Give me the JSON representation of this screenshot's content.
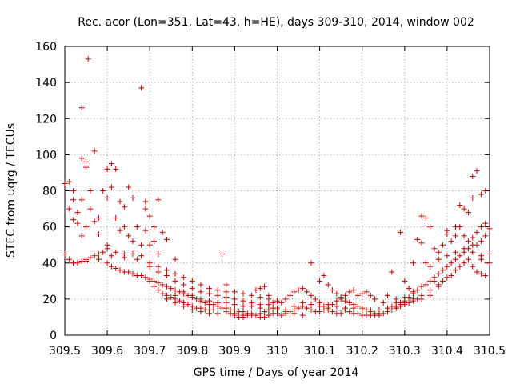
{
  "chart_data": {
    "type": "scatter",
    "title": "Rec. acor (Lon=351, Lat=43, h=HE), days 309-310, 2014, window 002",
    "xlabel": "GPS time / Days of year 2014",
    "ylabel": "STEC from uqrg / TECUs",
    "xlim": [
      309.5,
      310.5
    ],
    "ylim": [
      0,
      160
    ],
    "xticks": [
      309.5,
      309.6,
      309.7,
      309.8,
      309.9,
      310,
      310.1,
      310.2,
      310.3,
      310.4,
      310.5
    ],
    "xtick_labels": [
      "309.5",
      "309.6",
      "309.7",
      "309.8",
      "309.9",
      "310",
      "310.1",
      "310.2",
      "310.3",
      "310.4",
      "310.5"
    ],
    "yticks": [
      0,
      20,
      40,
      60,
      80,
      100,
      120,
      140,
      160
    ],
    "ytick_labels": [
      "0",
      "20",
      "40",
      "60",
      "80",
      "100",
      "120",
      "140",
      "160"
    ],
    "grid": true,
    "marker": "+",
    "color": "#cc0000",
    "points": [
      [
        309.5,
        84
      ],
      [
        309.51,
        85
      ],
      [
        309.52,
        80
      ],
      [
        309.52,
        75
      ],
      [
        309.51,
        70
      ],
      [
        309.53,
        68
      ],
      [
        309.52,
        64
      ],
      [
        309.53,
        62
      ],
      [
        309.54,
        98
      ],
      [
        309.55,
        93
      ],
      [
        309.55,
        96
      ],
      [
        309.54,
        75
      ],
      [
        309.56,
        80
      ],
      [
        309.55,
        60
      ],
      [
        309.54,
        55
      ],
      [
        309.57,
        63
      ],
      [
        309.54,
        126
      ],
      [
        309.555,
        153
      ],
      [
        309.57,
        102
      ],
      [
        309.59,
        80
      ],
      [
        309.58,
        65
      ],
      [
        309.56,
        70
      ],
      [
        309.58,
        56
      ],
      [
        309.6,
        92
      ],
      [
        309.61,
        95
      ],
      [
        309.62,
        92
      ],
      [
        309.6,
        76
      ],
      [
        309.61,
        82
      ],
      [
        309.63,
        74
      ],
      [
        309.64,
        71
      ],
      [
        309.62,
        65
      ],
      [
        309.65,
        82
      ],
      [
        309.66,
        76
      ],
      [
        309.64,
        60
      ],
      [
        309.65,
        55
      ],
      [
        309.66,
        52
      ],
      [
        309.63,
        58
      ],
      [
        309.6,
        50
      ],
      [
        309.68,
        137
      ],
      [
        309.69,
        74
      ],
      [
        309.7,
        66
      ],
      [
        309.69,
        70
      ],
      [
        309.71,
        60
      ],
      [
        309.72,
        75
      ],
      [
        309.67,
        60
      ],
      [
        309.68,
        50
      ],
      [
        309.7,
        50
      ],
      [
        309.72,
        45
      ],
      [
        309.73,
        57
      ],
      [
        309.74,
        53
      ],
      [
        309.71,
        52
      ],
      [
        309.69,
        58
      ],
      [
        309.76,
        42
      ],
      [
        309.5,
        45
      ],
      [
        309.51,
        42
      ],
      [
        309.52,
        40
      ],
      [
        309.53,
        40
      ],
      [
        309.54,
        41
      ],
      [
        309.55,
        42
      ],
      [
        309.56,
        43
      ],
      [
        309.57,
        44
      ],
      [
        309.58,
        45
      ],
      [
        309.59,
        46
      ],
      [
        309.6,
        40
      ],
      [
        309.61,
        38
      ],
      [
        309.62,
        37
      ],
      [
        309.63,
        36
      ],
      [
        309.64,
        35
      ],
      [
        309.65,
        35
      ],
      [
        309.66,
        34
      ],
      [
        309.67,
        33
      ],
      [
        309.68,
        33
      ],
      [
        309.69,
        32
      ],
      [
        309.7,
        31
      ],
      [
        309.71,
        30
      ],
      [
        309.72,
        29
      ],
      [
        309.73,
        28
      ],
      [
        309.74,
        27
      ],
      [
        309.75,
        26
      ],
      [
        309.76,
        25
      ],
      [
        309.77,
        24
      ],
      [
        309.78,
        23
      ],
      [
        309.79,
        22
      ],
      [
        309.8,
        21
      ],
      [
        309.81,
        20
      ],
      [
        309.82,
        19
      ],
      [
        309.83,
        18
      ],
      [
        309.84,
        17
      ],
      [
        309.85,
        17
      ],
      [
        309.86,
        16
      ],
      [
        309.87,
        15
      ],
      [
        309.88,
        15
      ],
      [
        309.89,
        14
      ],
      [
        309.9,
        14
      ],
      [
        309.91,
        13
      ],
      [
        309.92,
        13
      ],
      [
        309.93,
        12
      ],
      [
        309.94,
        12
      ],
      [
        309.95,
        11
      ],
      [
        309.96,
        12
      ],
      [
        309.97,
        13
      ],
      [
        309.98,
        14
      ],
      [
        309.99,
        15
      ],
      [
        309.52,
        40
      ],
      [
        309.55,
        41
      ],
      [
        309.58,
        42
      ],
      [
        309.61,
        44
      ],
      [
        309.64,
        43
      ],
      [
        309.67,
        42
      ],
      [
        309.7,
        40
      ],
      [
        309.72,
        38
      ],
      [
        309.74,
        36
      ],
      [
        309.76,
        34
      ],
      [
        309.78,
        32
      ],
      [
        309.8,
        30
      ],
      [
        309.82,
        28
      ],
      [
        309.84,
        26
      ],
      [
        309.86,
        25
      ],
      [
        309.88,
        24
      ],
      [
        309.9,
        24
      ],
      [
        309.92,
        23
      ],
      [
        309.94,
        22
      ],
      [
        309.96,
        21
      ],
      [
        309.98,
        20
      ],
      [
        310.0,
        19
      ],
      [
        309.6,
        48
      ],
      [
        309.62,
        46
      ],
      [
        309.64,
        45
      ],
      [
        309.66,
        45
      ],
      [
        309.68,
        44
      ],
      [
        309.7,
        38
      ],
      [
        309.72,
        35
      ],
      [
        309.74,
        33
      ],
      [
        309.76,
        30
      ],
      [
        309.78,
        28
      ],
      [
        309.8,
        26
      ],
      [
        309.82,
        24
      ],
      [
        309.84,
        23
      ],
      [
        309.86,
        22
      ],
      [
        309.88,
        21
      ],
      [
        309.9,
        20
      ],
      [
        309.92,
        19
      ],
      [
        309.94,
        18
      ],
      [
        309.96,
        17
      ],
      [
        309.98,
        17
      ],
      [
        309.7,
        30
      ],
      [
        309.71,
        27
      ],
      [
        309.72,
        25
      ],
      [
        309.73,
        23
      ],
      [
        309.74,
        22
      ],
      [
        309.75,
        21
      ],
      [
        309.76,
        20
      ],
      [
        309.77,
        19
      ],
      [
        309.78,
        18
      ],
      [
        309.79,
        17
      ],
      [
        309.8,
        16
      ],
      [
        309.81,
        15
      ],
      [
        309.82,
        15
      ],
      [
        309.83,
        14
      ],
      [
        309.84,
        14
      ],
      [
        309.85,
        14
      ],
      [
        309.87,
        45
      ],
      [
        309.88,
        28
      ],
      [
        309.89,
        12
      ],
      [
        309.9,
        11
      ],
      [
        309.91,
        10
      ],
      [
        309.92,
        10
      ],
      [
        309.93,
        11
      ],
      [
        309.95,
        25
      ],
      [
        309.96,
        26
      ],
      [
        309.97,
        27
      ],
      [
        309.98,
        22
      ],
      [
        309.99,
        18
      ],
      [
        309.97,
        10
      ],
      [
        309.99,
        12
      ],
      [
        310.0,
        15
      ],
      [
        310.01,
        18
      ],
      [
        310.02,
        20
      ],
      [
        310.03,
        22
      ],
      [
        310.04,
        24
      ],
      [
        310.05,
        25
      ],
      [
        310.06,
        26
      ],
      [
        310.07,
        24
      ],
      [
        310.08,
        22
      ],
      [
        310.09,
        20
      ],
      [
        310.1,
        18
      ],
      [
        310.11,
        16
      ],
      [
        310.12,
        14
      ],
      [
        310.13,
        13
      ],
      [
        310.14,
        12
      ],
      [
        310.15,
        12
      ],
      [
        310.01,
        11
      ],
      [
        310.02,
        12
      ],
      [
        310.03,
        13
      ],
      [
        310.04,
        14
      ],
      [
        310.05,
        15
      ],
      [
        310.06,
        16
      ],
      [
        310.07,
        15
      ],
      [
        310.08,
        14
      ],
      [
        310.09,
        13
      ],
      [
        310.1,
        13
      ],
      [
        310.11,
        14
      ],
      [
        310.12,
        15
      ],
      [
        310.13,
        17
      ],
      [
        310.14,
        19
      ],
      [
        310.15,
        20
      ],
      [
        310.16,
        22
      ],
      [
        310.08,
        40
      ],
      [
        310.1,
        30
      ],
      [
        310.11,
        33
      ],
      [
        310.12,
        28
      ],
      [
        310.13,
        25
      ],
      [
        310.14,
        23
      ],
      [
        310.15,
        21
      ],
      [
        310.16,
        19
      ],
      [
        310.17,
        18
      ],
      [
        310.18,
        17
      ],
      [
        310.19,
        16
      ],
      [
        310.2,
        15
      ],
      [
        310.21,
        14
      ],
      [
        310.22,
        13
      ],
      [
        310.23,
        12
      ],
      [
        310.24,
        12
      ],
      [
        310.16,
        14
      ],
      [
        310.17,
        13
      ],
      [
        310.18,
        12
      ],
      [
        310.19,
        12
      ],
      [
        310.2,
        11
      ],
      [
        310.21,
        11
      ],
      [
        310.22,
        11
      ],
      [
        310.23,
        11
      ],
      [
        310.24,
        11
      ],
      [
        310.25,
        12
      ],
      [
        310.26,
        13
      ],
      [
        310.27,
        14
      ],
      [
        310.28,
        15
      ],
      [
        310.29,
        16
      ],
      [
        310.17,
        24
      ],
      [
        310.18,
        25
      ],
      [
        310.19,
        22
      ],
      [
        310.2,
        23
      ],
      [
        310.21,
        24
      ],
      [
        310.22,
        22
      ],
      [
        310.23,
        20
      ],
      [
        310.25,
        18
      ],
      [
        310.26,
        22
      ],
      [
        310.27,
        35
      ],
      [
        310.28,
        20
      ],
      [
        310.29,
        18
      ],
      [
        310.3,
        17
      ],
      [
        310.31,
        18
      ],
      [
        310.32,
        19
      ],
      [
        310.33,
        20
      ],
      [
        310.28,
        15
      ],
      [
        310.29,
        17
      ],
      [
        310.3,
        19
      ],
      [
        310.31,
        21
      ],
      [
        310.32,
        23
      ],
      [
        310.33,
        25
      ],
      [
        310.34,
        27
      ],
      [
        310.35,
        28
      ],
      [
        310.36,
        30
      ],
      [
        310.37,
        32
      ],
      [
        310.38,
        34
      ],
      [
        310.39,
        36
      ],
      [
        310.4,
        38
      ],
      [
        310.41,
        40
      ],
      [
        310.42,
        42
      ],
      [
        310.43,
        44
      ],
      [
        310.44,
        46
      ],
      [
        310.45,
        48
      ],
      [
        310.46,
        50
      ],
      [
        310.47,
        50
      ],
      [
        310.48,
        52
      ],
      [
        310.49,
        55
      ],
      [
        310.5,
        59
      ],
      [
        310.29,
        57
      ],
      [
        310.3,
        30
      ],
      [
        310.31,
        26
      ],
      [
        310.32,
        40
      ],
      [
        310.33,
        53
      ],
      [
        310.34,
        51
      ],
      [
        310.34,
        66
      ],
      [
        310.35,
        65
      ],
      [
        310.36,
        60
      ],
      [
        310.37,
        48
      ],
      [
        310.38,
        46
      ],
      [
        310.39,
        50
      ],
      [
        310.4,
        58
      ],
      [
        310.41,
        52
      ],
      [
        310.42,
        55
      ],
      [
        310.43,
        60
      ],
      [
        310.43,
        72
      ],
      [
        310.44,
        70
      ],
      [
        310.45,
        68
      ],
      [
        310.46,
        76
      ],
      [
        310.46,
        88
      ],
      [
        310.47,
        91
      ],
      [
        310.48,
        78
      ],
      [
        310.49,
        80
      ],
      [
        310.49,
        62
      ],
      [
        310.48,
        60
      ],
      [
        310.47,
        57
      ],
      [
        310.46,
        54
      ],
      [
        310.45,
        52
      ],
      [
        310.44,
        55
      ],
      [
        310.42,
        60
      ],
      [
        310.4,
        56
      ],
      [
        310.37,
        30
      ],
      [
        310.38,
        28
      ],
      [
        310.39,
        30
      ],
      [
        310.4,
        32
      ],
      [
        310.41,
        33
      ],
      [
        310.42,
        36
      ],
      [
        310.43,
        38
      ],
      [
        310.44,
        40
      ],
      [
        310.45,
        42
      ],
      [
        310.46,
        38
      ],
      [
        310.47,
        35
      ],
      [
        310.48,
        34
      ],
      [
        310.49,
        33
      ],
      [
        310.5,
        40
      ],
      [
        310.5,
        45
      ],
      [
        310.48,
        42
      ],
      [
        310.35,
        40
      ],
      [
        310.36,
        38
      ],
      [
        310.38,
        42
      ],
      [
        310.4,
        44
      ],
      [
        310.42,
        46
      ],
      [
        310.44,
        48
      ],
      [
        310.46,
        46
      ],
      [
        310.48,
        44
      ],
      [
        310.26,
        14
      ],
      [
        310.27,
        16
      ],
      [
        310.28,
        18
      ],
      [
        310.3,
        21
      ],
      [
        310.32,
        24
      ],
      [
        310.34,
        22
      ],
      [
        310.36,
        25
      ],
      [
        310.38,
        27
      ],
      [
        309.76,
        18
      ],
      [
        309.78,
        16
      ],
      [
        309.8,
        14
      ],
      [
        309.82,
        13
      ],
      [
        309.84,
        12
      ],
      [
        309.86,
        12
      ],
      [
        309.88,
        13
      ],
      [
        309.9,
        12
      ],
      [
        309.92,
        11
      ],
      [
        309.94,
        11
      ],
      [
        309.96,
        10
      ],
      [
        309.98,
        11
      ],
      [
        310.0,
        12
      ],
      [
        310.02,
        13
      ],
      [
        310.04,
        12
      ],
      [
        310.06,
        11
      ],
      [
        309.74,
        20
      ],
      [
        309.76,
        22
      ],
      [
        309.78,
        24
      ],
      [
        309.8,
        22
      ],
      [
        309.82,
        20
      ],
      [
        309.84,
        19
      ],
      [
        309.86,
        18
      ],
      [
        309.88,
        18
      ],
      [
        309.9,
        17
      ],
      [
        309.92,
        16
      ],
      [
        309.94,
        16
      ],
      [
        309.96,
        15
      ],
      [
        309.98,
        14
      ],
      [
        310.0,
        14
      ],
      [
        310.02,
        14
      ],
      [
        310.04,
        16
      ],
      [
        310.06,
        18
      ],
      [
        310.08,
        17
      ],
      [
        310.1,
        16
      ],
      [
        310.12,
        17
      ],
      [
        310.14,
        16
      ],
      [
        310.16,
        15
      ],
      [
        310.18,
        15
      ],
      [
        310.2,
        14
      ],
      [
        310.22,
        14
      ],
      [
        310.24,
        14
      ],
      [
        310.26,
        15
      ],
      [
        310.28,
        16
      ],
      [
        310.3,
        18
      ],
      [
        310.32,
        20
      ],
      [
        310.34,
        20
      ],
      [
        310.36,
        22
      ]
    ]
  }
}
